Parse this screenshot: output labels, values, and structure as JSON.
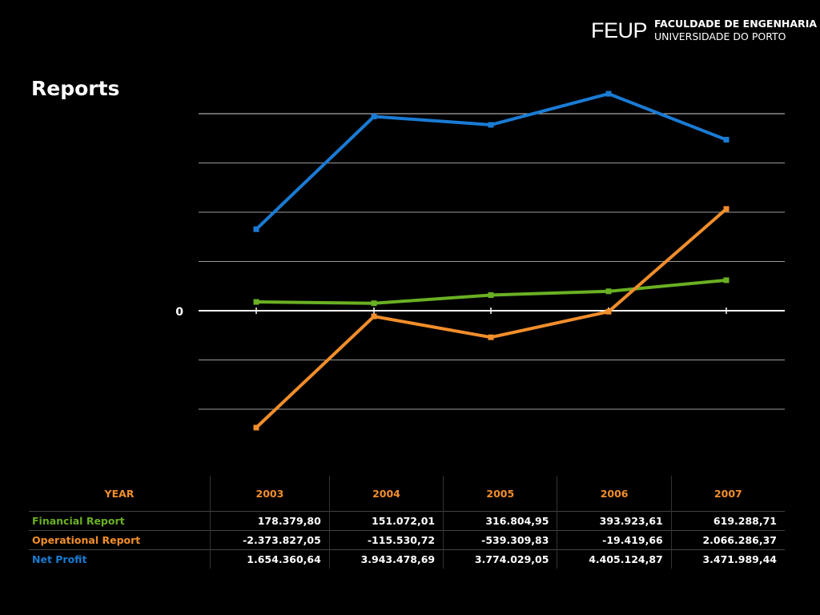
{
  "header": {
    "logo_mark": "FEUP",
    "logo_line1": "FACULDADE DE ENGENHARIA",
    "logo_line2": "UNIVERSIDADE DO PORTO"
  },
  "page_title": "Reports",
  "chart_data": {
    "type": "line",
    "x": [
      "2003",
      "2004",
      "2005",
      "2006",
      "2007"
    ],
    "series": [
      {
        "name": "Financial Report",
        "color": "#6ab023",
        "values": [
          178379.8,
          151072.01,
          316804.95,
          393923.61,
          619288.71
        ]
      },
      {
        "name": "Operational Report",
        "color": "#f28e2b",
        "values": [
          -2373827.05,
          -115530.72,
          -539309.83,
          -19419.66,
          2066286.37
        ]
      },
      {
        "name": "Net Profit",
        "color": "#1a7bd4",
        "values": [
          1654360.64,
          3943478.69,
          3774029.05,
          4405124.87,
          3471989.44
        ]
      }
    ],
    "ylim": [
      -2000000,
      4000000
    ],
    "zero_label": "0",
    "grid": true
  },
  "table": {
    "header": [
      "YEAR",
      "2003",
      "2004",
      "2005",
      "2006",
      "2007"
    ],
    "rows": [
      {
        "label": "Financial Report",
        "color": "#6ab023",
        "values": [
          "178.379,80",
          "151.072,01",
          "316.804,95",
          "393.923,61",
          "619.288,71"
        ]
      },
      {
        "label": "Operational Report",
        "color": "#f28e2b",
        "values": [
          "-2.373.827,05",
          "-115.530,72",
          "-539.309,83",
          "-19.419,66",
          "2.066.286,37"
        ]
      },
      {
        "label": "Net Profit",
        "color": "#1a7bd4",
        "values": [
          "1.654.360,64",
          "3.943.478,69",
          "3.774.029,05",
          "4.405.124,87",
          "3.471.989,44"
        ]
      }
    ]
  }
}
